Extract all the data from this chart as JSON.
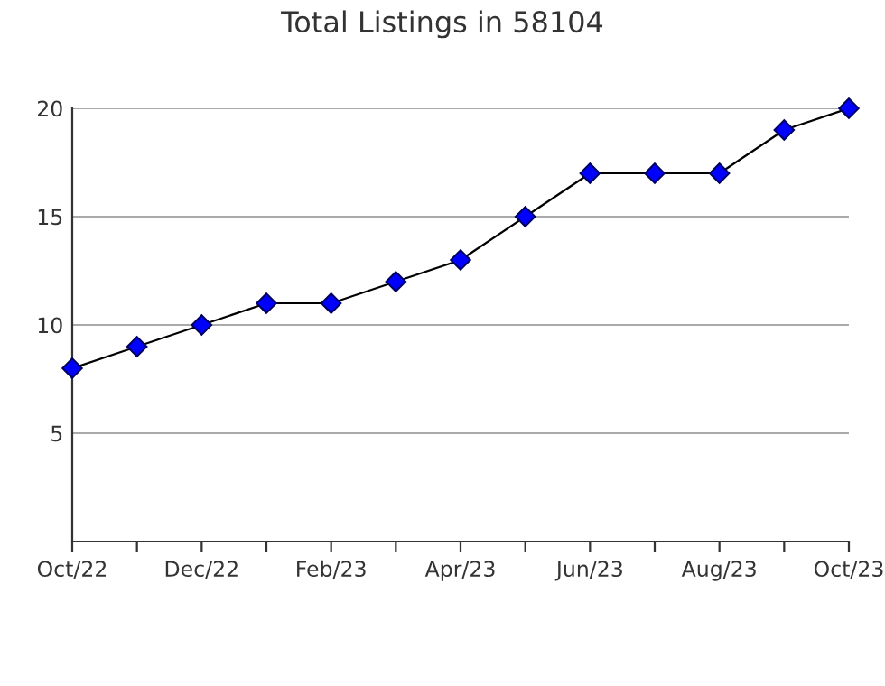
{
  "chart_data": {
    "type": "line",
    "title": "Total Listings in 58104",
    "categories": [
      "Oct/22",
      null,
      "Dec/22",
      null,
      "Feb/23",
      null,
      "Apr/23",
      null,
      "Jun/23",
      null,
      "Aug/23",
      null,
      "Oct/23"
    ],
    "series": [
      {
        "color": "#0000ff",
        "values": [
          8,
          9,
          10,
          11,
          11,
          12,
          13,
          15,
          17,
          17,
          17,
          19,
          20
        ]
      }
    ],
    "ylim": [
      0,
      20
    ],
    "yticks": [
      5,
      10,
      15,
      20
    ],
    "grid": "y",
    "marker": "diamond",
    "line_style": "solid"
  }
}
